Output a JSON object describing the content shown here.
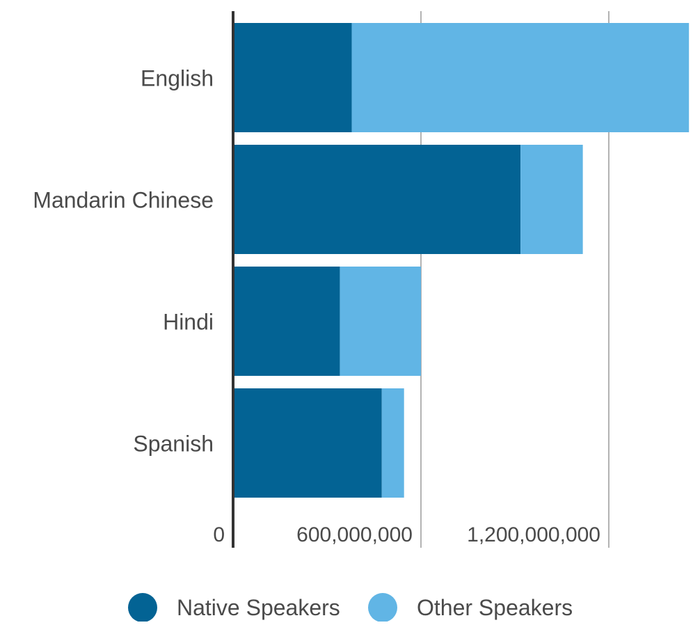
{
  "chart_data": {
    "type": "bar",
    "orientation": "horizontal",
    "stacked": true,
    "categories": [
      "English",
      "Mandarin Chinese",
      "Hindi",
      "Spanish"
    ],
    "series": [
      {
        "name": "Native Speakers",
        "color": "#036394",
        "values": [
          379000000,
          918000000,
          341000000,
          475000000
        ]
      },
      {
        "name": "Other Speakers",
        "color": "#61B5E5",
        "values": [
          1077000000,
          199000000,
          259000000,
          71000000
        ]
      }
    ],
    "x_ticks": [
      {
        "value": 0,
        "label": "0"
      },
      {
        "value": 600000000,
        "label": "600,000,000"
      },
      {
        "value": 1200000000,
        "label": "1,200,000,000"
      }
    ],
    "xlim": [
      0,
      1456000000
    ],
    "grid": true,
    "legend_position": "bottom"
  }
}
